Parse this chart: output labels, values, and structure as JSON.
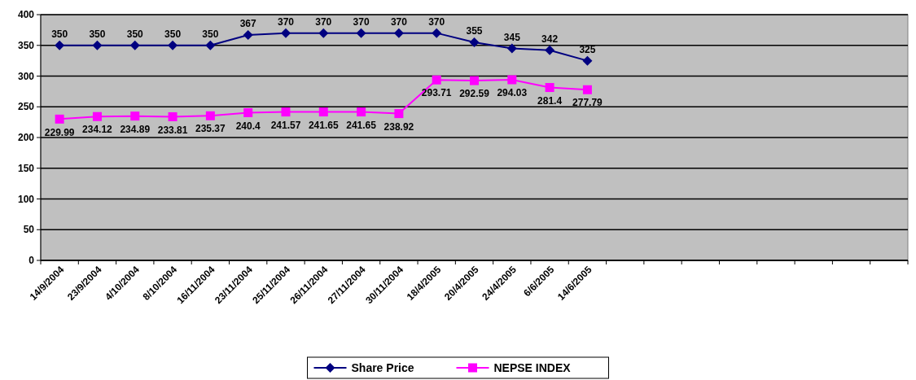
{
  "chart_data": {
    "type": "line",
    "categories": [
      "14/9/2004",
      "23/9/2004",
      "4/10/2004",
      "8/10/2004",
      "16/11/2004",
      "23/11/2004",
      "25/11/2004",
      "26/11/2004",
      "27/11/2004",
      "30/11/2004",
      "18/4/2005",
      "20/4/2005",
      "24/4/2005",
      "6/6/2005",
      "14/6/2005",
      null,
      null,
      null,
      null,
      null,
      null,
      null,
      null
    ],
    "series": [
      {
        "name": "Share Price",
        "color": "#000080",
        "marker": "diamond",
        "values": [
          350,
          350,
          350,
          350,
          350,
          367,
          370,
          370,
          370,
          370,
          370,
          355,
          345,
          342,
          325,
          null,
          null,
          null,
          null,
          null,
          null,
          null,
          null
        ]
      },
      {
        "name": "NEPSE INDEX",
        "color": "#ff00ff",
        "marker": "square",
        "values": [
          229.99,
          234.12,
          234.89,
          233.81,
          235.37,
          240.4,
          241.57,
          241.65,
          241.65,
          238.92,
          293.71,
          292.59,
          294.03,
          281.4,
          277.79,
          null,
          null,
          null,
          null,
          null,
          null,
          null,
          null
        ]
      }
    ],
    "ylim": [
      0,
      400
    ],
    "yticks": [
      0,
      50,
      100,
      150,
      200,
      250,
      300,
      350,
      400
    ],
    "grid": "y",
    "legend": "bottom",
    "data_labels": true
  }
}
